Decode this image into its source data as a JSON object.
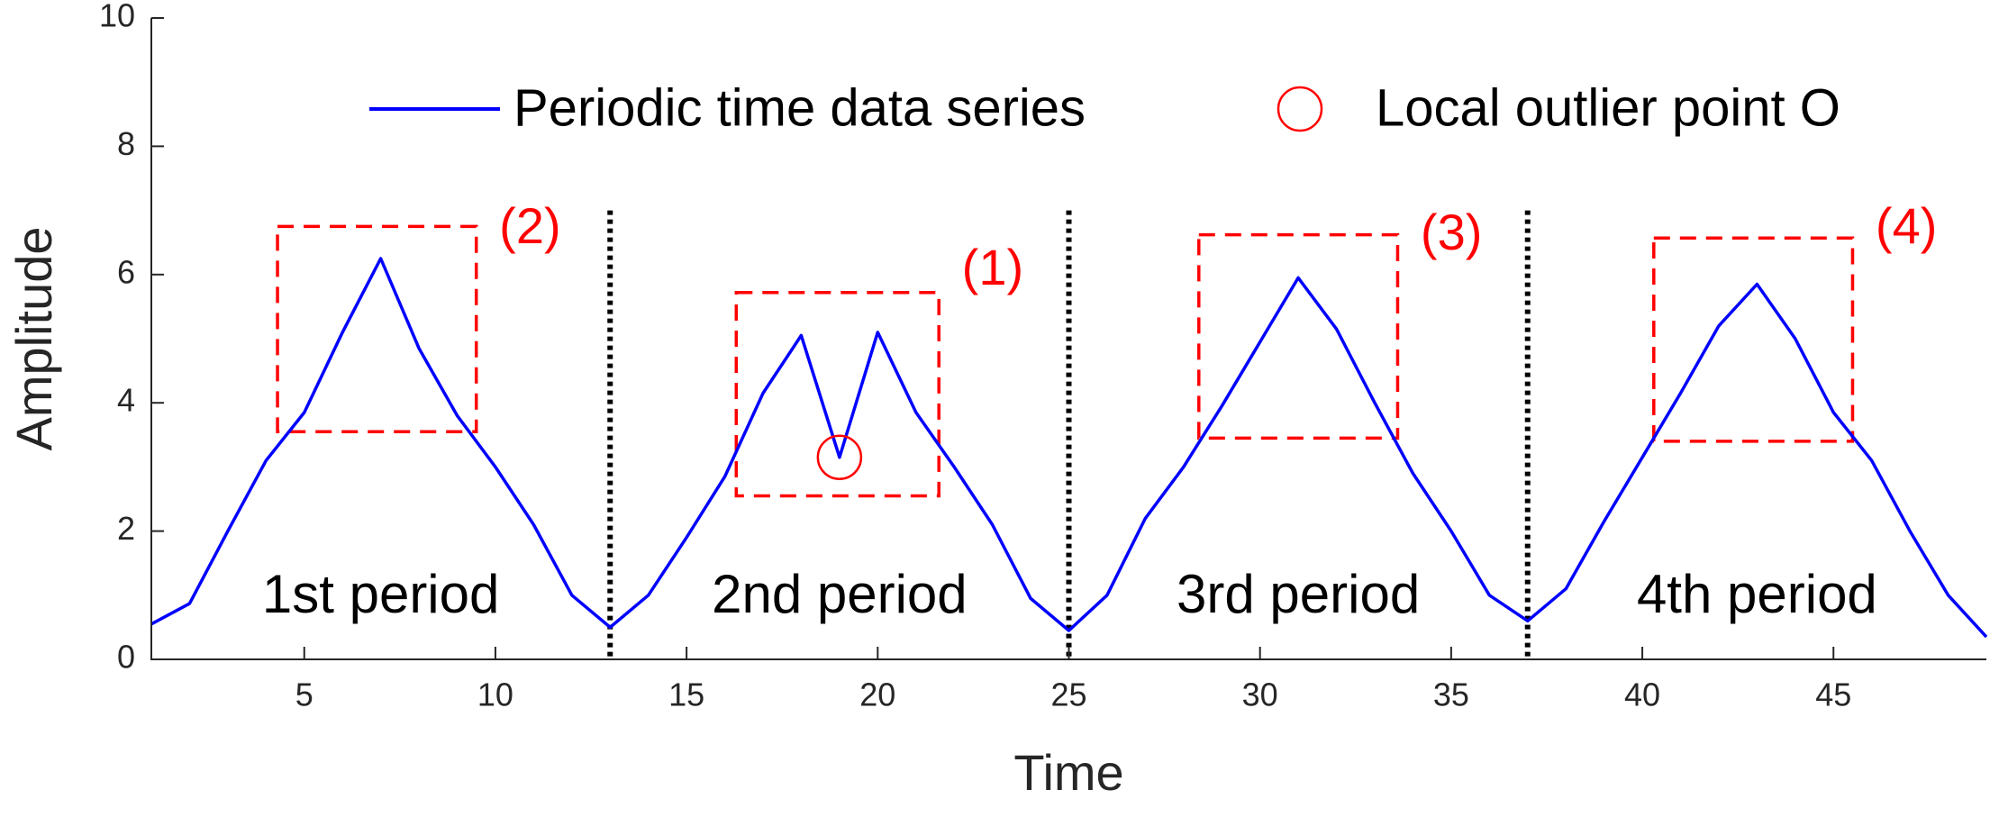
{
  "chart_data": {
    "type": "line",
    "title": "",
    "xlabel": "Time",
    "ylabel": "Amplitude",
    "xlim": [
      1,
      49
    ],
    "ylim": [
      0,
      10
    ],
    "xticks": [
      5,
      10,
      15,
      20,
      25,
      30,
      35,
      40,
      45
    ],
    "yticks": [
      0,
      2,
      4,
      6,
      8,
      10
    ],
    "grid": false,
    "legend_position": "top-right",
    "series": [
      {
        "name": "Periodic time data series",
        "color": "#0000ff",
        "x": [
          1,
          2,
          3,
          4,
          5,
          6,
          7,
          8,
          9,
          10,
          11,
          12,
          13,
          14,
          15,
          16,
          17,
          18,
          19,
          20,
          21,
          22,
          23,
          24,
          25,
          26,
          27,
          28,
          29,
          30,
          31,
          32,
          33,
          34,
          35,
          36,
          37,
          38,
          39,
          40,
          41,
          42,
          43,
          44,
          45,
          46,
          47,
          48,
          49
        ],
        "values": [
          0.55,
          0.87,
          2.0,
          3.1,
          3.85,
          5.1,
          6.25,
          4.85,
          3.8,
          3.0,
          2.1,
          1.0,
          0.5,
          1.0,
          1.9,
          2.85,
          4.15,
          5.05,
          3.15,
          5.1,
          3.85,
          3.0,
          2.1,
          0.95,
          0.45,
          1.0,
          2.2,
          3.0,
          3.95,
          4.95,
          5.95,
          5.15,
          4.0,
          2.9,
          2.0,
          1.0,
          0.6,
          1.1,
          2.15,
          3.15,
          4.15,
          5.2,
          5.85,
          5.0,
          3.85,
          3.1,
          2.0,
          1.0,
          0.35
        ]
      }
    ],
    "outlier": {
      "name": "Local outlier point O",
      "x": 19,
      "y": 3.15,
      "color": "#ff0000"
    },
    "period_boundaries": [
      13,
      25,
      37
    ],
    "periods": [
      {
        "label": "1st period",
        "x": 7,
        "y": 0.95
      },
      {
        "label": "2nd period",
        "x": 19,
        "y": 0.95
      },
      {
        "label": "3rd period",
        "x": 31,
        "y": 0.95
      },
      {
        "label": "4th period",
        "x": 43,
        "y": 0.95
      }
    ],
    "regions": [
      {
        "label": "(2)",
        "x0": 4.3,
        "x1": 9.5,
        "y0": 3.55,
        "y1": 6.75,
        "label_x": 10.1,
        "label_y": 6.7
      },
      {
        "label": "(1)",
        "x0": 16.3,
        "x1": 21.6,
        "y0": 2.55,
        "y1": 5.72,
        "label_x": 22.2,
        "label_y": 6.05
      },
      {
        "label": "(3)",
        "x0": 28.4,
        "x1": 33.6,
        "y0": 3.45,
        "y1": 6.62,
        "label_x": 34.2,
        "label_y": 6.6
      },
      {
        "label": "(4)",
        "x0": 40.3,
        "x1": 45.5,
        "y0": 3.4,
        "y1": 6.57,
        "label_x": 46.1,
        "label_y": 6.7
      }
    ]
  }
}
